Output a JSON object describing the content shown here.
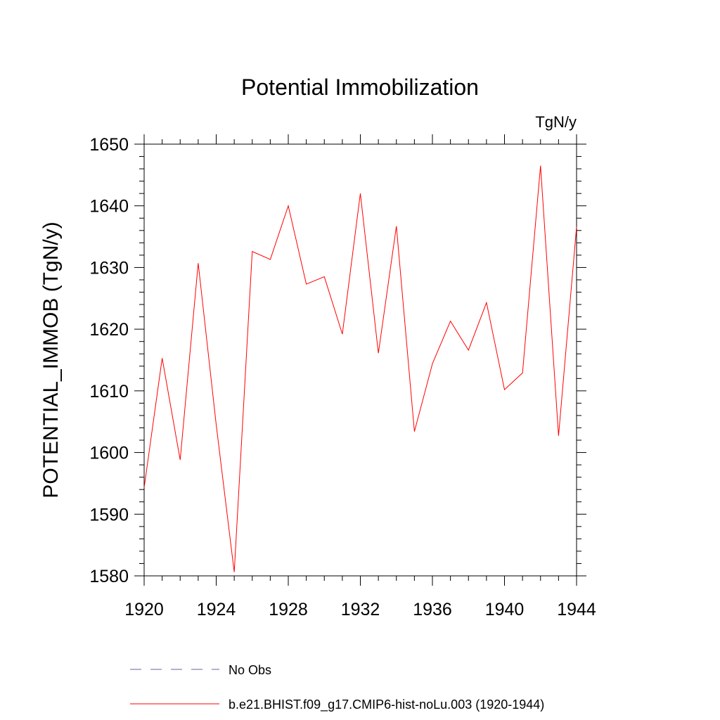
{
  "chart_data": {
    "type": "line",
    "title": "Potential Immobilization",
    "units_label": "TgN/y",
    "ylabel": "POTENTIAL_IMMOB  (TgN/y)",
    "xlabel": "",
    "xlim": [
      1920,
      1944
    ],
    "ylim": [
      1580,
      1650
    ],
    "x_ticks": [
      1920,
      1924,
      1928,
      1932,
      1936,
      1940,
      1944
    ],
    "y_ticks": [
      1580,
      1590,
      1600,
      1610,
      1620,
      1630,
      1640,
      1650
    ],
    "grid": false,
    "legend_position": "bottom",
    "series": [
      {
        "name": "No Obs",
        "color": "#6666aa",
        "style": "dashed",
        "x": [],
        "y": []
      },
      {
        "name": "b.e21.BHIST.f09_g17.CMIP6-hist-noLu.003 (1920-1944)",
        "color": "#ff0000",
        "style": "solid",
        "x": [
          1920,
          1921,
          1922,
          1923,
          1924,
          1925,
          1926,
          1927,
          1928,
          1929,
          1930,
          1931,
          1932,
          1933,
          1934,
          1935,
          1936,
          1937,
          1938,
          1939,
          1940,
          1941,
          1942,
          1943,
          1944
        ],
        "y": [
          1594.3,
          1615.3,
          1598.8,
          1630.7,
          1604.5,
          1580.6,
          1632.6,
          1631.3,
          1640.0,
          1627.3,
          1628.5,
          1619.2,
          1642.0,
          1616.1,
          1636.7,
          1603.4,
          1614.4,
          1621.3,
          1616.6,
          1624.3,
          1610.2,
          1612.9,
          1646.5,
          1602.7,
          1636.6
        ]
      }
    ]
  }
}
